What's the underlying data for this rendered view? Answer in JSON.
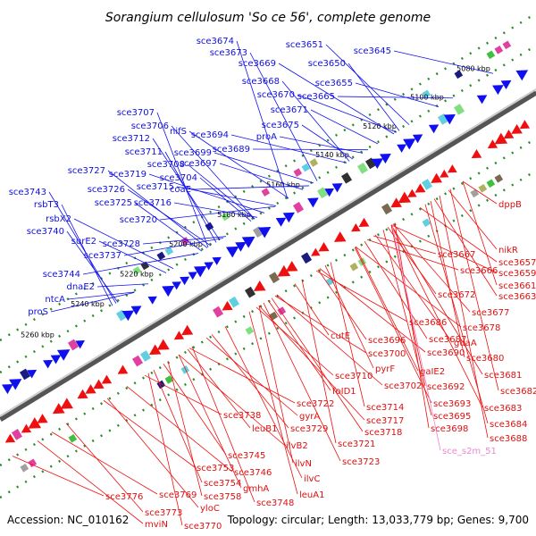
{
  "title": "Sorangium cellulosum 'So ce 56', complete genome",
  "accession": "Accession: NC_010162",
  "topology": "Topology: circular; Length: 13,033,779 bp; Genes: 9,700",
  "colors": {
    "plus_strand": "#1010ee",
    "minus_strand": "#ee1010",
    "special": "#ee88cc",
    "backbone": "#888888"
  },
  "kbp_ticks": [
    "5080 kbp",
    "5100 kbp",
    "5120 kbp",
    "5140 kbp",
    "5160 kbp",
    "5180 kbp",
    "5200 kbp",
    "5220 kbp",
    "5240 kbp",
    "5260 kbp"
  ],
  "upper_labels": [
    "sce3674",
    "sce3673",
    "sce3651",
    "sce3645",
    "sce3669",
    "sce3650",
    "sce3668",
    "sce3655",
    "sce3670",
    "sce3665",
    "sce3707",
    "sce3671",
    "sce3706",
    "nifS",
    "sce3694",
    "sce3675",
    "sce3712",
    "proA",
    "sce3699",
    "sce3689",
    "sce3711",
    "sce3708",
    "sce3697",
    "sce3727",
    "sce3719",
    "sce3704",
    "sce3743",
    "sce3726",
    "sce3715",
    "coaE",
    "rsbT3",
    "sce3725",
    "sce3716",
    "rsbX2",
    "sce3720",
    "sce3740",
    "surE2",
    "sce3728",
    "sce3737",
    "sce3744",
    "dnaE2",
    "ntcA",
    "proS"
  ],
  "lower_labels": [
    "dppB",
    "nikR",
    "sce3667",
    "sce3657",
    "sce3666",
    "sce3659",
    "sce3661",
    "sce3672",
    "sce3663",
    "sce3677",
    "sce3686",
    "sce3678",
    "cutE",
    "sce3696",
    "sce3687",
    "guaA",
    "sce3700",
    "sce3690",
    "sce3680",
    "pyrF",
    "gaIE2",
    "sce3710",
    "sce3681",
    "sce3702",
    "sce3692",
    "sce3682",
    "foID1",
    "sce3693",
    "sce3683",
    "sce3722",
    "sce3714",
    "sce3695",
    "sce3684",
    "sce3738",
    "gyrA",
    "sce3717",
    "sce3698",
    "sce3688",
    "leuB1",
    "sce3729",
    "sce3718",
    "ilvB2",
    "sce3721",
    "sce_s2m_51",
    "sce3745",
    "sce3723",
    "sce3753",
    "sce3746",
    "ilvN",
    "sce3754",
    "gmhA",
    "ilvC",
    "sce3776",
    "sce3769",
    "sce3758",
    "leuA1",
    "sce3748",
    "sce3773",
    "yloC",
    "mviN",
    "sce3770"
  ]
}
